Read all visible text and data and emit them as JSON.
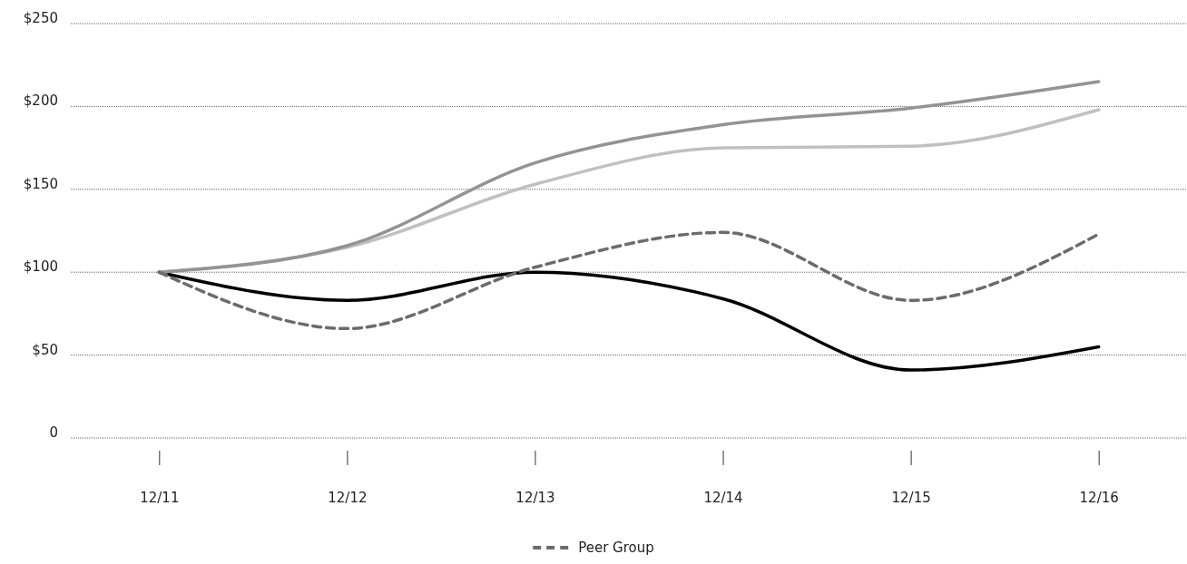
{
  "chart_data": {
    "type": "line",
    "categories": [
      "12/11",
      "12/12",
      "12/13",
      "12/14",
      "12/15",
      "12/16"
    ],
    "series": [
      {
        "color": "#000000",
        "values": [
          100,
          83,
          100,
          84,
          41,
          55
        ]
      },
      {
        "color": "#c0c0c0",
        "values": [
          100,
          115,
          153,
          175,
          176,
          198
        ]
      },
      {
        "color": "#939393",
        "values": [
          100,
          116,
          166,
          189,
          199,
          215
        ]
      },
      {
        "name": "Peer Group",
        "color": "#6b6b6b",
        "line_style": "dashed",
        "values": [
          100,
          66,
          103,
          124,
          83,
          123
        ]
      }
    ],
    "ylim": [
      0,
      250
    ],
    "yticks": [
      {
        "value": 0,
        "label": "0"
      },
      {
        "value": 50,
        "label": "$50"
      },
      {
        "value": 100,
        "label": "$100"
      },
      {
        "value": 150,
        "label": "$150"
      },
      {
        "value": 200,
        "label": "$200"
      },
      {
        "value": 250,
        "label": "$250"
      }
    ],
    "grid": "y",
    "legend": "bottom",
    "marker": "none",
    "line_style": "solid"
  }
}
